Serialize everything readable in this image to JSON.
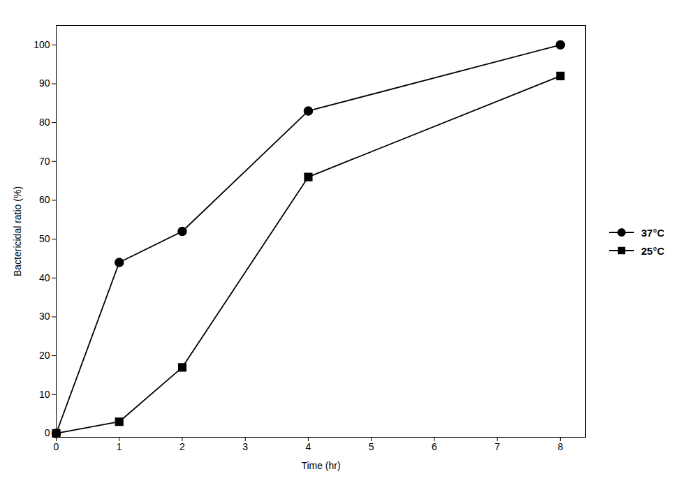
{
  "chart_data": {
    "type": "line",
    "xlabel": "Time (hr)",
    "ylabel": "Bactericidal ratio (%)",
    "x": [
      0,
      1,
      2,
      4,
      8
    ],
    "series": [
      {
        "name": "37°C",
        "color": "#000000",
        "marker": "circle",
        "values": [
          0,
          44,
          52,
          83,
          100
        ]
      },
      {
        "name": "25°C",
        "color": "#000000",
        "marker": "square",
        "values": [
          0,
          3,
          17,
          66,
          92
        ]
      }
    ],
    "xlim": [
      0,
      8.4
    ],
    "ylim": [
      -1,
      105
    ],
    "xticks": [
      0,
      1,
      2,
      3,
      4,
      5,
      6,
      7,
      8
    ],
    "yticks": [
      0,
      10,
      20,
      30,
      40,
      50,
      60,
      70,
      80,
      90,
      100
    ],
    "grid": false,
    "legend": "right"
  }
}
